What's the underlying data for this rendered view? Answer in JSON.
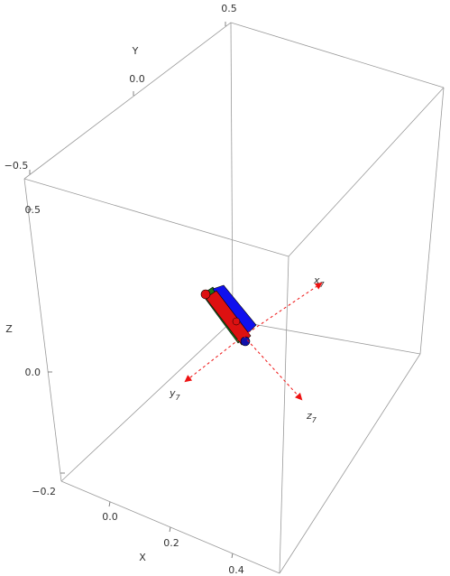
{
  "axes": {
    "x": {
      "label": "X",
      "ticks": [
        "0.0",
        "0.2",
        "0.4"
      ]
    },
    "y": {
      "label": "Y",
      "ticks": [
        "−0.5",
        "0.0",
        "0.5"
      ]
    },
    "z": {
      "label": "Z",
      "ticks": [
        "−0.2",
        "0.0",
        "0.5"
      ]
    }
  },
  "frame": {
    "x_label": {
      "base": "x",
      "sub": "7"
    },
    "y_label": {
      "base": "y",
      "sub": "7"
    },
    "z_label": {
      "base": "z",
      "sub": "7"
    }
  }
}
